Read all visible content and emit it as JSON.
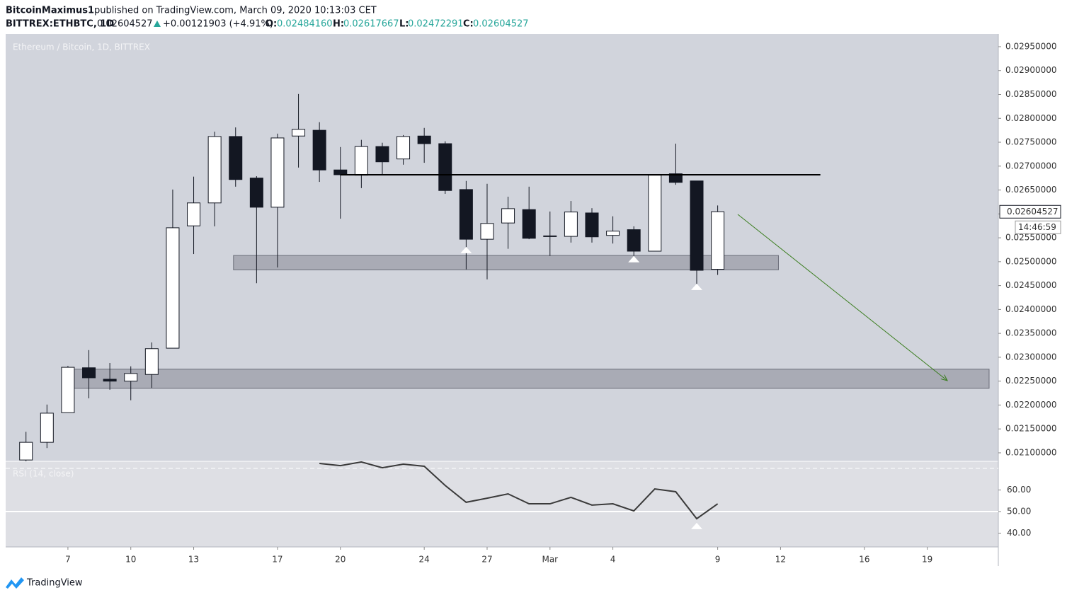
{
  "header": {
    "author": "BitcoinMaximus1",
    "published": "published on TradingView.com, March 09, 2020 10:13:03 CET",
    "symbol": "BITTREX:ETHBTC, 1D",
    "last": "0.02604527",
    "change": "+0.00121903 (+4.91%)",
    "o_label": "O:",
    "o": "0.02484160",
    "h_label": "H:",
    "h": "0.02617667",
    "l_label": "L:",
    "l": "0.02472291",
    "c_label": "C:",
    "c": "0.02604527"
  },
  "footer": {
    "brand": "TradingView"
  },
  "chart_data": [
    {
      "type": "candlestick",
      "title": "Ethereum / Bitcoin, 1D, BITTREX",
      "x": [
        5,
        6,
        7,
        8,
        9,
        10,
        11,
        12,
        13,
        14,
        15,
        16,
        17,
        18,
        19,
        20,
        21,
        22,
        23,
        24,
        25,
        26,
        27,
        28,
        29,
        30,
        31,
        32,
        33,
        34,
        35,
        36,
        37,
        38
      ],
      "open": [
        0.02085,
        0.02122,
        0.02184,
        0.02278,
        0.02254,
        0.0225,
        0.02264,
        0.02319,
        0.02575,
        0.02623,
        0.02762,
        0.02675,
        0.02614,
        0.02763,
        0.02775,
        0.02692,
        0.02681,
        0.02741,
        0.02715,
        0.02763,
        0.02747,
        0.02651,
        0.02547,
        0.02581,
        0.02609,
        0.02553,
        0.02553,
        0.02602,
        0.02555,
        0.02567,
        0.02522,
        0.02684,
        0.02669,
        0.0248416
      ],
      "high": [
        0.02144,
        0.02201,
        0.02282,
        0.02315,
        0.02288,
        0.02281,
        0.02331,
        0.02651,
        0.02678,
        0.02772,
        0.02781,
        0.02679,
        0.02768,
        0.02851,
        0.02792,
        0.0274,
        0.02755,
        0.02749,
        0.02765,
        0.0278,
        0.02752,
        0.02669,
        0.02663,
        0.02636,
        0.02657,
        0.02605,
        0.02627,
        0.02612,
        0.02595,
        0.02574,
        0.02681,
        0.02747,
        0.02669,
        0.02617667
      ],
      "low": [
        0.0208,
        0.0211,
        0.02184,
        0.02214,
        0.02232,
        0.0221,
        0.02236,
        0.02319,
        0.02516,
        0.02574,
        0.02657,
        0.02455,
        0.02488,
        0.02697,
        0.02667,
        0.0259,
        0.02654,
        0.02681,
        0.02703,
        0.02707,
        0.02642,
        0.02484,
        0.02463,
        0.02527,
        0.02547,
        0.02512,
        0.0254,
        0.0254,
        0.02538,
        0.02512,
        0.02522,
        0.02661,
        0.02451,
        0.02472291
      ],
      "close": [
        0.02122,
        0.02183,
        0.02279,
        0.02257,
        0.0225,
        0.02266,
        0.02318,
        0.02571,
        0.02623,
        0.02762,
        0.02672,
        0.02614,
        0.02759,
        0.02777,
        0.02692,
        0.02682,
        0.02741,
        0.02709,
        0.02762,
        0.02747,
        0.02649,
        0.02547,
        0.0258,
        0.02611,
        0.02549,
        0.02554,
        0.02604,
        0.02552,
        0.02564,
        0.02522,
        0.02681,
        0.02666,
        0.02482,
        0.02604527
      ],
      "up_color": "#ffffff",
      "down_color": "#131722",
      "xlim": [
        4.03,
        51.39
      ],
      "xticks": [
        7,
        10,
        13,
        17,
        20,
        24,
        27,
        {
          "value": 30,
          "label": "Mar"
        },
        {
          "value": 33,
          "label": "4"
        },
        {
          "value": 38,
          "label": "9"
        },
        {
          "value": 41,
          "label": "12"
        },
        {
          "value": 45,
          "label": "16"
        },
        {
          "value": 48,
          "label": "19"
        }
      ],
      "ylim": [
        0.020822,
        0.029766
      ],
      "yticks": [
        {
          "value": 0.021,
          "label": "0.02100000"
        },
        {
          "value": 0.0215,
          "label": "0.02150000"
        },
        {
          "value": 0.022,
          "label": "0.02200000"
        },
        {
          "value": 0.0225,
          "label": "0.02250000"
        },
        {
          "value": 0.023,
          "label": "0.02300000"
        },
        {
          "value": 0.0235,
          "label": "0.02350000"
        },
        {
          "value": 0.024,
          "label": "0.02400000"
        },
        {
          "value": 0.0245,
          "label": "0.02450000"
        },
        {
          "value": 0.025,
          "label": "0.02500000"
        },
        {
          "value": 0.0255,
          "label": "0.02550000"
        },
        {
          "value": 0.026,
          "label": "0.02600000"
        },
        {
          "value": 0.0265,
          "label": "0.02650000"
        },
        {
          "value": 0.027,
          "label": "0.02700000"
        },
        {
          "value": 0.0275,
          "label": "0.02750000"
        },
        {
          "value": 0.028,
          "label": "0.02800000"
        },
        {
          "value": 0.0285,
          "label": "0.02850000"
        },
        {
          "value": 0.029,
          "label": "0.02900000"
        },
        {
          "value": 0.0295,
          "label": "0.02950000"
        }
      ],
      "grid": false,
      "last_price": {
        "value": 0.02604527,
        "label": "0.02604527"
      },
      "countdown": "14:46:59",
      "resistance": {
        "x": [
          20,
          42.9
        ],
        "y": 0.02682
      },
      "zones": [
        {
          "x": [
            14.9,
            40.9
          ],
          "y": [
            0.02483,
            0.02513
          ]
        },
        {
          "x": [
            7,
            50.95
          ],
          "y": [
            0.02235,
            0.02275
          ]
        }
      ],
      "arrow": {
        "x": [
          38.96,
          48.96
        ],
        "y": [
          0.02599,
          0.02251
        ],
        "color": "#3a7d1e"
      },
      "markers": [
        {
          "x": 26,
          "y": 0.02531
        },
        {
          "x": 34,
          "y": 0.02512
        },
        {
          "x": 37,
          "y": 0.02454
        }
      ]
    },
    {
      "type": "line",
      "title": "RSI (14, close)",
      "x": [
        5,
        6,
        7,
        8,
        9,
        10,
        11,
        12,
        13,
        14,
        15,
        16,
        17,
        18,
        19,
        20,
        21,
        22,
        23,
        24,
        25,
        26,
        27,
        28,
        29,
        30,
        31,
        32,
        33,
        34,
        35,
        36,
        37,
        38
      ],
      "values": [
        null,
        null,
        null,
        null,
        null,
        null,
        null,
        null,
        null,
        null,
        null,
        null,
        null,
        null,
        72.3,
        71.3,
        73,
        70.3,
        72,
        71,
        62.1,
        54.3,
        56.2,
        58.2,
        53.6,
        53.6,
        56.6,
        53,
        53.6,
        50.3,
        60.5,
        59.2,
        46.7,
        53.6
      ],
      "color": "#3a3a3a",
      "ylim": [
        33.6,
        73.3
      ],
      "yticks": [
        {
          "value": 40,
          "label": "40.00"
        },
        {
          "value": 50,
          "label": "50.00"
        },
        {
          "value": 60,
          "label": "60.00"
        }
      ],
      "levels": [
        70,
        50
      ],
      "markers": [
        {
          "x": 37,
          "y": 44.8
        }
      ]
    }
  ]
}
